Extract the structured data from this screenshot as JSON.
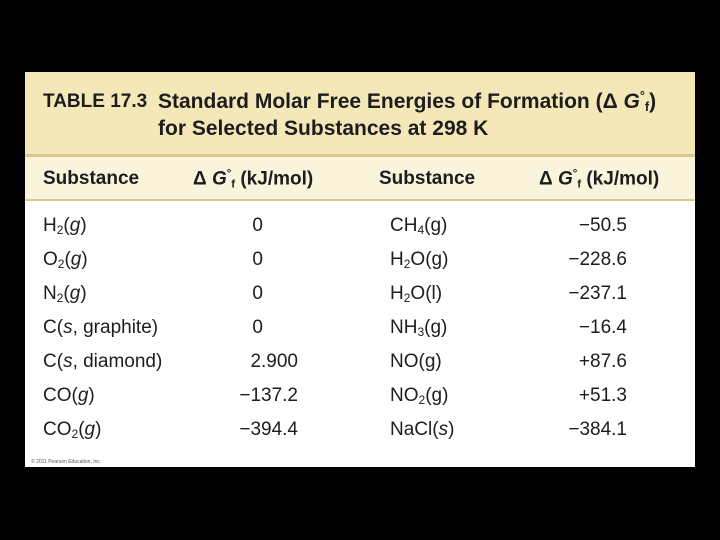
{
  "table": {
    "label": "TABLE 17.3",
    "title_line_1": "Standard Molar Free Energies of Formation (ΔG°f)",
    "title_line_2": "for Selected Substances at 298 K",
    "columns": [
      "Substance",
      "ΔG°f (kJ/mol)",
      "Substance",
      "ΔG°f (kJ/mol)"
    ],
    "left_rows": [
      {
        "substance": "H2(g)",
        "value": "0"
      },
      {
        "substance": "O2(g)",
        "value": "0"
      },
      {
        "substance": "N2(g)",
        "value": "0"
      },
      {
        "substance": "C(s, graphite)",
        "value": "0"
      },
      {
        "substance": "C(s, diamond)",
        "value": "2.900"
      },
      {
        "substance": "CO(g)",
        "value": "−137.2"
      },
      {
        "substance": "CO2(g)",
        "value": "−394.4"
      }
    ],
    "right_rows": [
      {
        "substance": "CH4(g)",
        "value": "−50.5"
      },
      {
        "substance": "H2O(g)",
        "value": "−228.6"
      },
      {
        "substance": "H2O(l)",
        "value": "−237.1"
      },
      {
        "substance": "NH3(g)",
        "value": "−16.4"
      },
      {
        "substance": "NO(g)",
        "value": "+87.6"
      },
      {
        "substance": "NO2(g)",
        "value": "+51.3"
      },
      {
        "substance": "NaCl(s)",
        "value": "−384.1"
      }
    ]
  },
  "credit": "© 2011 Pearson Education, Inc.",
  "colors": {
    "title_band": "#f4e8b9",
    "header_band": "#faf4dd",
    "rule": "#d9c98e",
    "background": "#000000"
  }
}
